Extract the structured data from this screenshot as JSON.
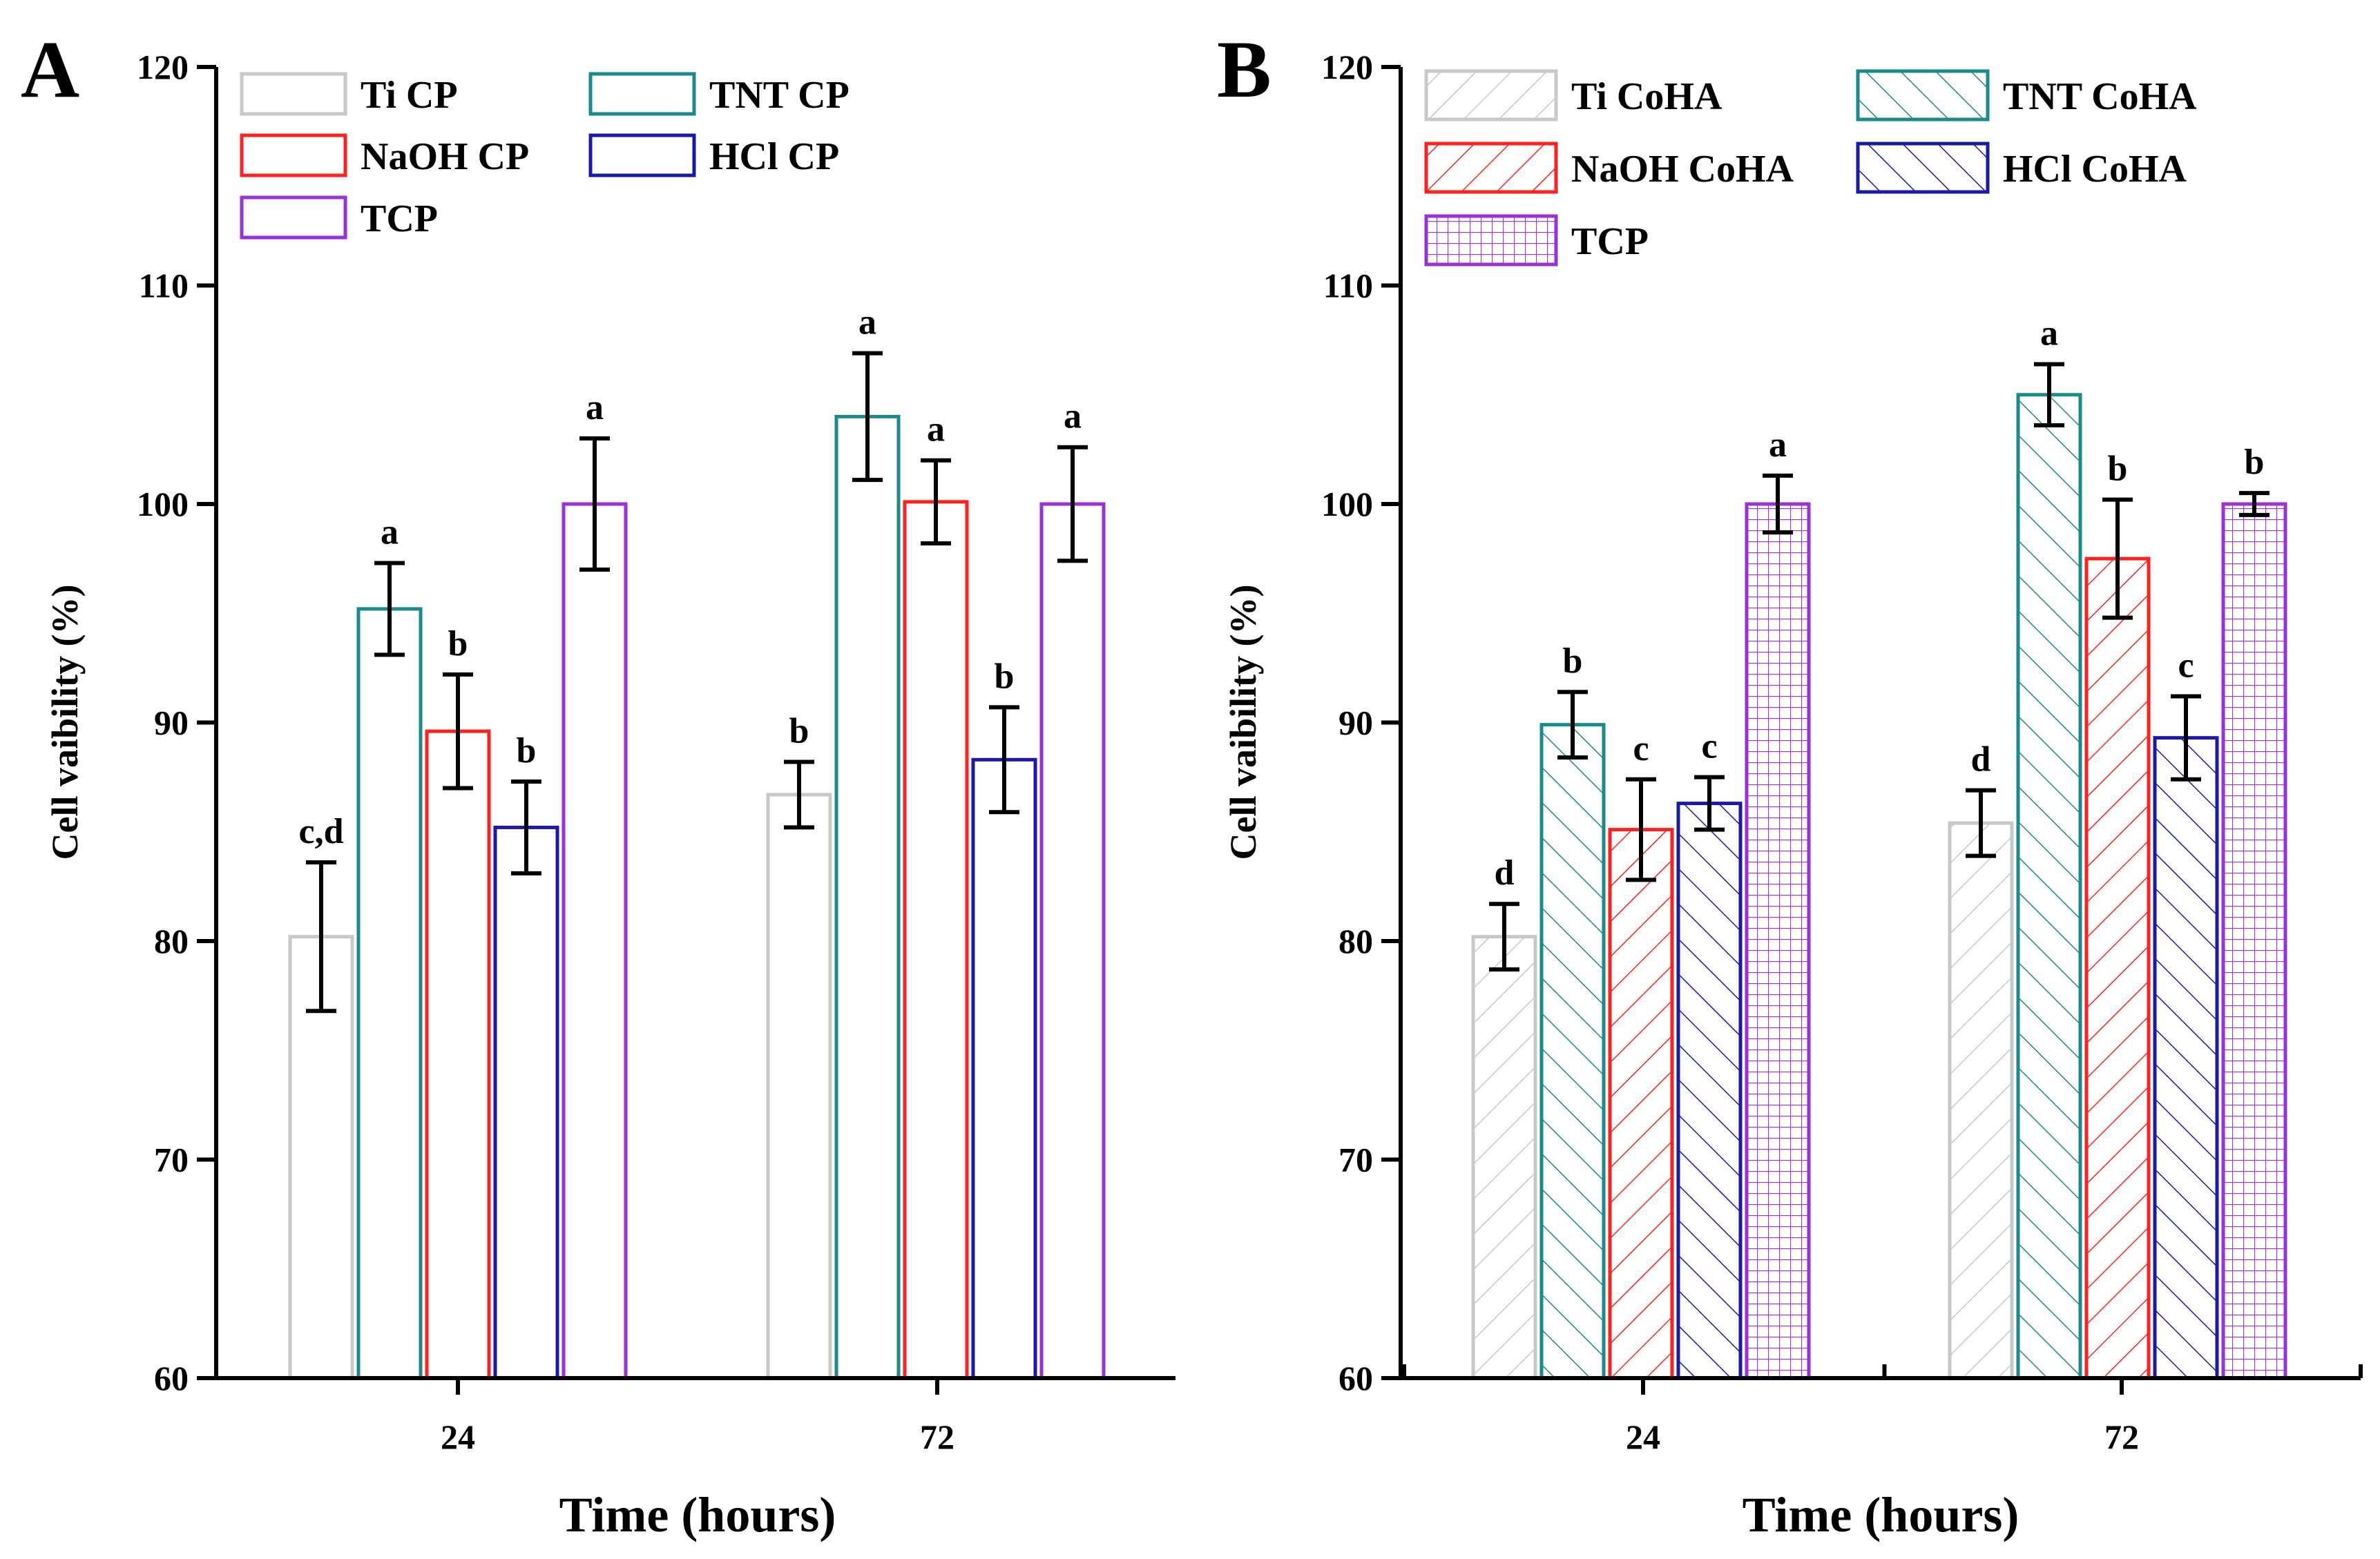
{
  "chart_data": [
    {
      "panel": "A",
      "type": "bar",
      "xlabel": "Time (hours)",
      "ylabel": "Cell vaibility (%)",
      "categories": [
        "24",
        "72"
      ],
      "yticks": [
        "60",
        "70",
        "80",
        "90",
        "100",
        "110",
        "120"
      ],
      "ylim": [
        60,
        120
      ],
      "series": [
        {
          "name": "Ti CP",
          "color": "#c8c8c8",
          "pattern": "none",
          "values": [
            80.2,
            86.7
          ],
          "errors": [
            3.4,
            1.5
          ],
          "letters": [
            "c,d",
            "b"
          ]
        },
        {
          "name": "TNT CP",
          "color": "#1b8a8a",
          "pattern": "none",
          "values": [
            95.2,
            104.0
          ],
          "errors": [
            2.1,
            2.9
          ],
          "letters": [
            "a",
            "a"
          ]
        },
        {
          "name": "NaOH CP",
          "color": "#ff2020",
          "pattern": "none",
          "values": [
            89.6,
            100.1
          ],
          "errors": [
            2.6,
            1.9
          ],
          "letters": [
            "b",
            "a"
          ]
        },
        {
          "name": "HCl CP",
          "color": "#1a1aaa",
          "pattern": "none",
          "values": [
            85.2,
            88.3
          ],
          "errors": [
            2.1,
            2.4
          ],
          "letters": [
            "b",
            "b"
          ]
        },
        {
          "name": "TCP",
          "color": "#9b30d9",
          "pattern": "none",
          "values": [
            100.0,
            100.0
          ],
          "errors": [
            3.0,
            2.6
          ],
          "letters": [
            "a",
            "a"
          ]
        }
      ]
    },
    {
      "panel": "B",
      "type": "bar",
      "xlabel": "Time (hours)",
      "ylabel": "Cell vaibility (%)",
      "categories": [
        "24",
        "72"
      ],
      "yticks": [
        "60",
        "70",
        "80",
        "90",
        "100",
        "110",
        "120"
      ],
      "ylim": [
        60,
        120
      ],
      "series": [
        {
          "name": "Ti CoHA",
          "color": "#c8c8c8",
          "pattern": "diag-right",
          "values": [
            80.2,
            85.4
          ],
          "errors": [
            1.5,
            1.5
          ],
          "letters": [
            "d",
            "d"
          ]
        },
        {
          "name": "TNT CoHA",
          "color": "#1b8a8a",
          "pattern": "diag-left",
          "values": [
            89.9,
            105.0
          ],
          "errors": [
            1.5,
            1.4
          ],
          "letters": [
            "b",
            "a"
          ]
        },
        {
          "name": "NaOH CoHA",
          "color": "#ff2020",
          "pattern": "diag-right",
          "values": [
            85.1,
            97.5
          ],
          "errors": [
            2.3,
            2.7
          ],
          "letters": [
            "c",
            "b"
          ]
        },
        {
          "name": "HCl CoHA",
          "color": "#1a1aaa",
          "pattern": "diag-left",
          "values": [
            86.3,
            89.3
          ],
          "errors": [
            1.2,
            1.9
          ],
          "letters": [
            "c",
            "c"
          ]
        },
        {
          "name": "TCP",
          "color": "#9b30d9",
          "pattern": "grid",
          "values": [
            100.0,
            100.0
          ],
          "errors": [
            1.3,
            0.5
          ],
          "letters": [
            "a",
            "b"
          ]
        }
      ]
    }
  ]
}
